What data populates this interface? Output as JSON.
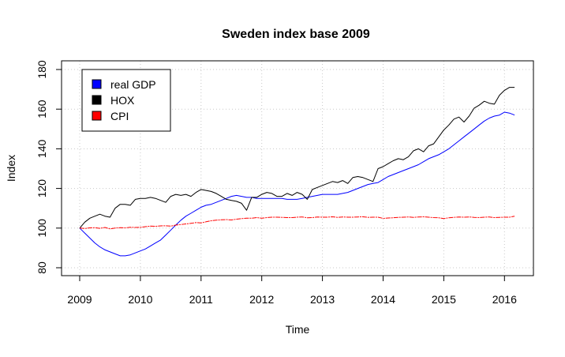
{
  "chart_data": {
    "type": "line",
    "title": "Sweden index base 2009",
    "xlabel": "Time",
    "ylabel": "Index",
    "xlim": [
      2009,
      2016.25
    ],
    "ylim": [
      80,
      180
    ],
    "x_ticks": [
      2009,
      2010,
      2011,
      2012,
      2013,
      2014,
      2015,
      2016
    ],
    "y_ticks": [
      80,
      100,
      120,
      140,
      160,
      180
    ],
    "grid": true,
    "legend_position": "top-left",
    "colors": {
      "real_gdp": "#0000ff",
      "hox": "#000000",
      "cpi": "#ff0000",
      "grid": "#c8c8c8",
      "axis": "#000000"
    },
    "series": [
      {
        "name": "real GDP",
        "color": "#0000ff",
        "x": [
          2009.0,
          2009.083,
          2009.167,
          2009.25,
          2009.333,
          2009.417,
          2009.5,
          2009.583,
          2009.667,
          2009.75,
          2009.833,
          2009.917,
          2010.0,
          2010.083,
          2010.167,
          2010.25,
          2010.333,
          2010.417,
          2010.5,
          2010.583,
          2010.667,
          2010.75,
          2010.833,
          2010.917,
          2011.0,
          2011.083,
          2011.167,
          2011.25,
          2011.333,
          2011.417,
          2011.5,
          2011.583,
          2011.667,
          2011.75,
          2011.833,
          2011.917,
          2012.0,
          2012.083,
          2012.167,
          2012.25,
          2012.333,
          2012.417,
          2012.5,
          2012.583,
          2012.667,
          2012.75,
          2012.833,
          2012.917,
          2013.0,
          2013.083,
          2013.167,
          2013.25,
          2013.333,
          2013.417,
          2013.5,
          2013.583,
          2013.667,
          2013.75,
          2013.833,
          2013.917,
          2014.0,
          2014.083,
          2014.167,
          2014.25,
          2014.333,
          2014.417,
          2014.5,
          2014.583,
          2014.667,
          2014.75,
          2014.833,
          2014.917,
          2015.0,
          2015.083,
          2015.167,
          2015.25,
          2015.333,
          2015.417,
          2015.5,
          2015.583,
          2015.667,
          2015.75,
          2015.833,
          2015.917,
          2016.0,
          2016.083,
          2016.167
        ],
        "y": [
          100.0,
          97.5,
          95.0,
          92.5,
          90.5,
          89.0,
          88.0,
          87.0,
          86.0,
          86.0,
          86.5,
          87.5,
          88.5,
          89.5,
          91.0,
          92.5,
          94.0,
          96.5,
          99.0,
          101.5,
          104.0,
          106.0,
          107.5,
          109.0,
          110.5,
          111.5,
          112.0,
          113.0,
          114.0,
          115.0,
          116.0,
          116.5,
          116.0,
          115.5,
          115.5,
          115.0,
          115.0,
          115.0,
          115.0,
          115.0,
          115.0,
          114.5,
          114.5,
          114.5,
          115.0,
          115.5,
          116.0,
          116.5,
          117.0,
          117.0,
          117.0,
          117.0,
          117.5,
          118.0,
          119.0,
          120.0,
          121.0,
          122.0,
          122.5,
          123.0,
          124.5,
          126.0,
          127.0,
          128.0,
          129.0,
          130.0,
          131.0,
          132.0,
          133.5,
          135.0,
          136.0,
          137.0,
          138.5,
          140.0,
          142.0,
          144.0,
          146.0,
          148.0,
          150.0,
          152.0,
          154.0,
          155.5,
          156.5,
          157.0,
          158.5,
          158.0,
          157.0
        ]
      },
      {
        "name": "HOX",
        "color": "#000000",
        "x": [
          2009.0,
          2009.083,
          2009.167,
          2009.25,
          2009.333,
          2009.417,
          2009.5,
          2009.583,
          2009.667,
          2009.75,
          2009.833,
          2009.917,
          2010.0,
          2010.083,
          2010.167,
          2010.25,
          2010.333,
          2010.417,
          2010.5,
          2010.583,
          2010.667,
          2010.75,
          2010.833,
          2010.917,
          2011.0,
          2011.083,
          2011.167,
          2011.25,
          2011.333,
          2011.417,
          2011.5,
          2011.583,
          2011.667,
          2011.75,
          2011.833,
          2011.917,
          2012.0,
          2012.083,
          2012.167,
          2012.25,
          2012.333,
          2012.417,
          2012.5,
          2012.583,
          2012.667,
          2012.75,
          2012.833,
          2012.917,
          2013.0,
          2013.083,
          2013.167,
          2013.25,
          2013.333,
          2013.417,
          2013.5,
          2013.583,
          2013.667,
          2013.75,
          2013.833,
          2013.917,
          2014.0,
          2014.083,
          2014.167,
          2014.25,
          2014.333,
          2014.417,
          2014.5,
          2014.583,
          2014.667,
          2014.75,
          2014.833,
          2014.917,
          2015.0,
          2015.083,
          2015.167,
          2015.25,
          2015.333,
          2015.417,
          2015.5,
          2015.583,
          2015.667,
          2015.75,
          2015.833,
          2015.917,
          2016.0,
          2016.083,
          2016.167
        ],
        "y": [
          100.0,
          103.0,
          105.0,
          106.0,
          107.0,
          106.0,
          105.5,
          110.0,
          112.0,
          112.0,
          111.5,
          114.5,
          115.0,
          115.0,
          115.5,
          115.0,
          114.0,
          113.0,
          116.0,
          117.0,
          116.5,
          117.0,
          116.0,
          118.0,
          119.5,
          119.0,
          118.5,
          117.5,
          116.0,
          114.5,
          114.0,
          113.5,
          112.5,
          109.0,
          115.5,
          115.5,
          117.0,
          118.0,
          117.5,
          116.0,
          116.0,
          117.5,
          116.5,
          118.0,
          117.0,
          114.5,
          119.5,
          120.5,
          121.5,
          122.5,
          123.5,
          123.0,
          124.0,
          122.5,
          125.5,
          126.0,
          125.5,
          124.5,
          123.5,
          130.0,
          131.0,
          132.5,
          134.0,
          135.0,
          134.5,
          136.0,
          139.0,
          140.0,
          138.5,
          141.5,
          142.5,
          146.0,
          149.5,
          152.0,
          155.0,
          156.0,
          153.5,
          156.5,
          160.5,
          162.0,
          164.0,
          163.0,
          162.5,
          167.0,
          169.5,
          171.0,
          171.0
        ]
      },
      {
        "name": "CPI",
        "color": "#ff0000",
        "x": [
          2009.0,
          2009.083,
          2009.167,
          2009.25,
          2009.333,
          2009.417,
          2009.5,
          2009.583,
          2009.667,
          2009.75,
          2009.833,
          2009.917,
          2010.0,
          2010.083,
          2010.167,
          2010.25,
          2010.333,
          2010.417,
          2010.5,
          2010.583,
          2010.667,
          2010.75,
          2010.833,
          2010.917,
          2011.0,
          2011.083,
          2011.167,
          2011.25,
          2011.333,
          2011.417,
          2011.5,
          2011.583,
          2011.667,
          2011.75,
          2011.833,
          2011.917,
          2012.0,
          2012.083,
          2012.167,
          2012.25,
          2012.333,
          2012.417,
          2012.5,
          2012.583,
          2012.667,
          2012.75,
          2012.833,
          2012.917,
          2013.0,
          2013.083,
          2013.167,
          2013.25,
          2013.333,
          2013.417,
          2013.5,
          2013.583,
          2013.667,
          2013.75,
          2013.833,
          2013.917,
          2014.0,
          2014.083,
          2014.167,
          2014.25,
          2014.333,
          2014.417,
          2014.5,
          2014.583,
          2014.667,
          2014.75,
          2014.833,
          2014.917,
          2015.0,
          2015.083,
          2015.167,
          2015.25,
          2015.333,
          2015.417,
          2015.5,
          2015.583,
          2015.667,
          2015.75,
          2015.833,
          2015.917,
          2016.0,
          2016.083,
          2016.167
        ],
        "y": [
          100.0,
          99.8,
          100.1,
          100.2,
          99.9,
          100.3,
          99.6,
          100.0,
          100.2,
          100.1,
          100.4,
          100.3,
          100.4,
          100.7,
          101.0,
          100.9,
          101.1,
          101.2,
          101.0,
          101.5,
          101.8,
          102.1,
          102.4,
          102.8,
          102.6,
          103.2,
          103.7,
          104.0,
          104.2,
          104.3,
          104.1,
          104.5,
          104.8,
          105.0,
          105.0,
          105.3,
          105.0,
          105.3,
          105.5,
          105.5,
          105.4,
          105.3,
          105.3,
          105.5,
          105.6,
          105.2,
          105.3,
          105.6,
          105.5,
          105.5,
          105.7,
          105.4,
          105.6,
          105.5,
          105.5,
          105.6,
          105.7,
          105.4,
          105.5,
          105.5,
          104.9,
          105.1,
          105.2,
          105.4,
          105.5,
          105.6,
          105.4,
          105.6,
          105.7,
          105.5,
          105.3,
          105.2,
          104.8,
          105.2,
          105.4,
          105.6,
          105.5,
          105.6,
          105.4,
          105.3,
          105.5,
          105.6,
          105.3,
          105.4,
          105.5,
          105.5,
          106.0
        ]
      }
    ]
  }
}
